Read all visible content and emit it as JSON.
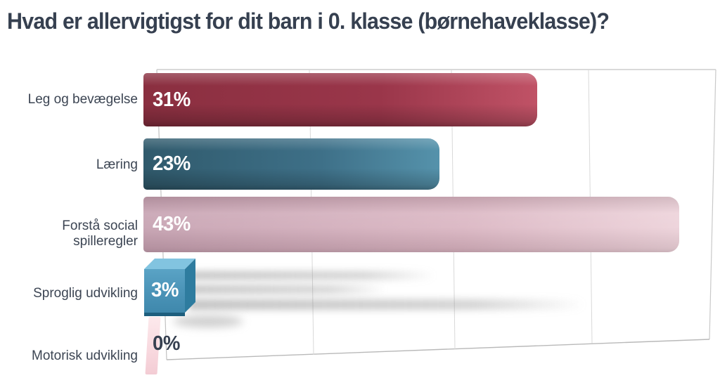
{
  "chart_data": {
    "type": "bar",
    "orientation": "horizontal",
    "title": "Hvad er allervigtigst for dit barn i 0. klasse (børnehaveklasse)?",
    "categories": [
      "Leg og bevægelse",
      "Læring",
      "Forstå social spilleregler",
      "Sproglig udvikling",
      "Motorisk udvikling"
    ],
    "values": [
      31,
      23,
      43,
      3,
      0
    ],
    "value_labels": [
      "31%",
      "23%",
      "43%",
      "3%",
      "0%"
    ],
    "xlim": [
      0,
      45
    ],
    "grid": true,
    "legend": false,
    "bar_colors": [
      "#9a364a",
      "#3e7088",
      "#d9b3c0",
      "#4b94b8",
      "#f8d8de"
    ],
    "title_color": "#364050",
    "label_color": "#3c4553",
    "gridline_color": "#d9d9d9",
    "frame_color": "#c2c2c2",
    "value_text_color": "#ffffff"
  }
}
